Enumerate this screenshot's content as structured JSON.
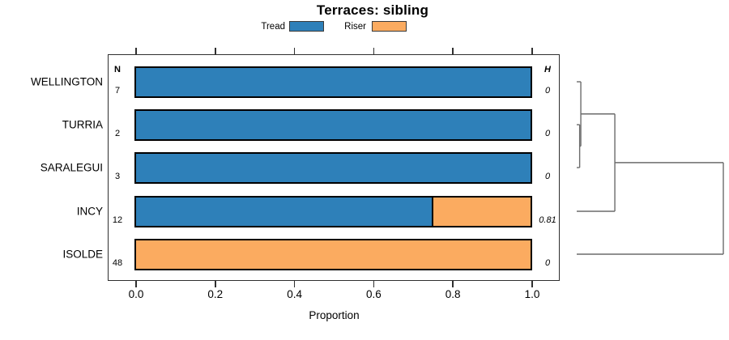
{
  "chart_data": {
    "type": "bar",
    "orientation": "horizontal",
    "stacked": true,
    "title": "Terraces: sibling",
    "xlabel": "Proportion",
    "xlim": [
      0,
      1
    ],
    "x_ticks": [
      0.0,
      0.2,
      0.4,
      0.6,
      0.8,
      1.0
    ],
    "x_tick_labels": [
      "0.0",
      "0.2",
      "0.4",
      "0.6",
      "0.8",
      "1.0"
    ],
    "grid": false,
    "legend_position": "top",
    "categories": [
      "WELLINGTON",
      "TURRIA",
      "SARALEGUI",
      "INCY",
      "ISOLDE"
    ],
    "columns": {
      "n_header": "N",
      "h_header": "H"
    },
    "rows": [
      {
        "label": "WELLINGTON",
        "n": "7",
        "h": "0",
        "tread": 1.0,
        "riser": 0.0
      },
      {
        "label": "TURRIA",
        "n": "2",
        "h": "0",
        "tread": 1.0,
        "riser": 0.0
      },
      {
        "label": "SARALEGUI",
        "n": "3",
        "h": "0",
        "tread": 1.0,
        "riser": 0.0
      },
      {
        "label": "INCY",
        "n": "12",
        "h": "0.81",
        "tread": 0.75,
        "riser": 0.25
      },
      {
        "label": "ISOLDE",
        "n": "48",
        "h": "0",
        "tread": 0.0,
        "riser": 1.0
      }
    ],
    "series": [
      {
        "name": "Tread",
        "values": [
          1.0,
          1.0,
          1.0,
          0.75,
          0.0
        ]
      },
      {
        "name": "Riser",
        "values": [
          0.0,
          0.0,
          0.0,
          0.25,
          1.0
        ]
      }
    ],
    "legend": [
      {
        "label": "Tread",
        "color": "#2E80B9"
      },
      {
        "label": "Riser",
        "color": "#FBAB60"
      }
    ],
    "colors": {
      "tread": "#2E80B9",
      "riser": "#FBAB60",
      "bar_border": "#000000",
      "box_border": "#2f2f2f",
      "dendrogram": "#6b6b6b"
    },
    "dendrogram": {
      "note": "right-side cluster tree; leaves are rows top-to-bottom; heights relative 0-1",
      "merges": [
        {
          "a": "leaf1",
          "b": "leaf2",
          "height": 0.02
        },
        {
          "a": "leaf0",
          "b": "m0",
          "height": 0.028
        },
        {
          "a": "m1",
          "b": "leaf3",
          "height": 0.26
        },
        {
          "a": "m2",
          "b": "leaf4",
          "height": 1.0
        }
      ]
    }
  }
}
